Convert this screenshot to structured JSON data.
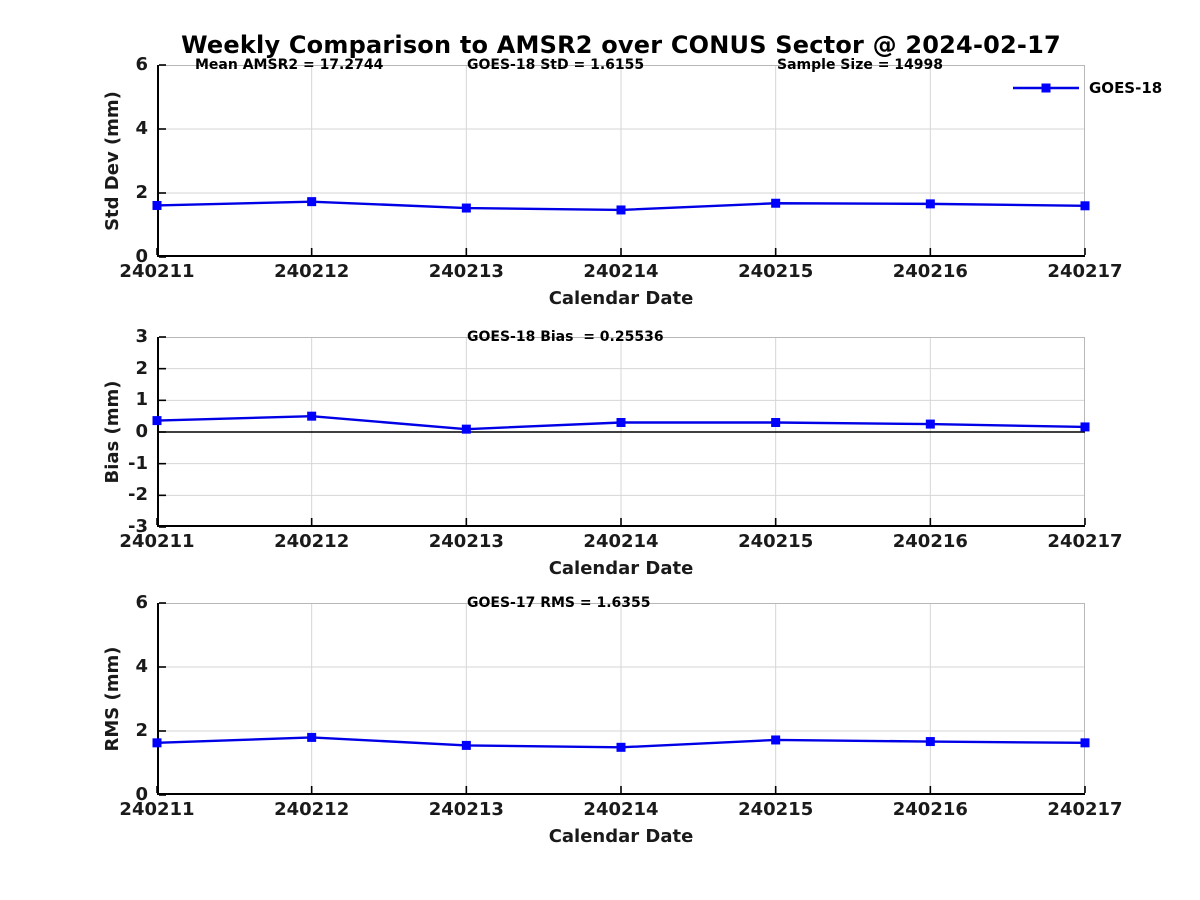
{
  "title": "Weekly Comparison to AMSR2 over CONUS Sector @ 2024-02-17",
  "stats": {
    "mean_amsr2": 17.2744,
    "goes18_std": 1.6155,
    "sample_size": 14998,
    "goes18_bias": 0.25536,
    "goes17_rms": 1.6355
  },
  "colors": {
    "series_line": "#0000e6",
    "series_marker": "#0000ff",
    "grid": "#d6d6d6",
    "box_light": "#b8b8b8",
    "axis": "#000000"
  },
  "legend": {
    "label": "GOES-18",
    "position": "northeast"
  },
  "chart_data": [
    {
      "type": "line",
      "categories": [
        "240211",
        "240212",
        "240213",
        "240214",
        "240215",
        "240216",
        "240217"
      ],
      "series": [
        {
          "name": "GOES-18",
          "values": [
            1.61,
            1.73,
            1.53,
            1.47,
            1.68,
            1.66,
            1.6
          ]
        }
      ],
      "xlabel": "Calendar Date",
      "ylabel": "Std Dev (mm)",
      "ylim": [
        0,
        6
      ],
      "yticks": [
        6,
        4,
        2,
        0
      ],
      "grid": true,
      "zero_line": false,
      "legend": [
        "GOES-18"
      ],
      "annotations": [
        "Mean AMSR2 = 17.2744",
        "GOES-18 StD = 1.6155",
        "Sample Size = 14998"
      ]
    },
    {
      "type": "line",
      "categories": [
        "240211",
        "240212",
        "240213",
        "240214",
        "240215",
        "240216",
        "240217"
      ],
      "series": [
        {
          "name": "GOES-18",
          "values": [
            0.36,
            0.5,
            0.09,
            0.3,
            0.3,
            0.25,
            0.16
          ]
        }
      ],
      "xlabel": "Calendar Date",
      "ylabel": "Bias (mm)",
      "ylim": [
        -3,
        3
      ],
      "yticks": [
        3,
        2,
        1,
        0,
        -1,
        -2,
        -3
      ],
      "grid": true,
      "zero_line": true,
      "annotations": [
        "GOES-18 Bias  = 0.25536"
      ]
    },
    {
      "type": "line",
      "categories": [
        "240211",
        "240212",
        "240213",
        "240214",
        "240215",
        "240216",
        "240217"
      ],
      "series": [
        {
          "name": "GOES-18",
          "values": [
            1.63,
            1.8,
            1.55,
            1.49,
            1.72,
            1.67,
            1.63
          ]
        }
      ],
      "xlabel": "Calendar Date",
      "ylabel": "RMS (mm)",
      "ylim": [
        0,
        6
      ],
      "yticks": [
        6,
        4,
        2,
        0
      ],
      "grid": true,
      "zero_line": false,
      "annotations": [
        "GOES-17 RMS = 1.6355"
      ]
    }
  ]
}
